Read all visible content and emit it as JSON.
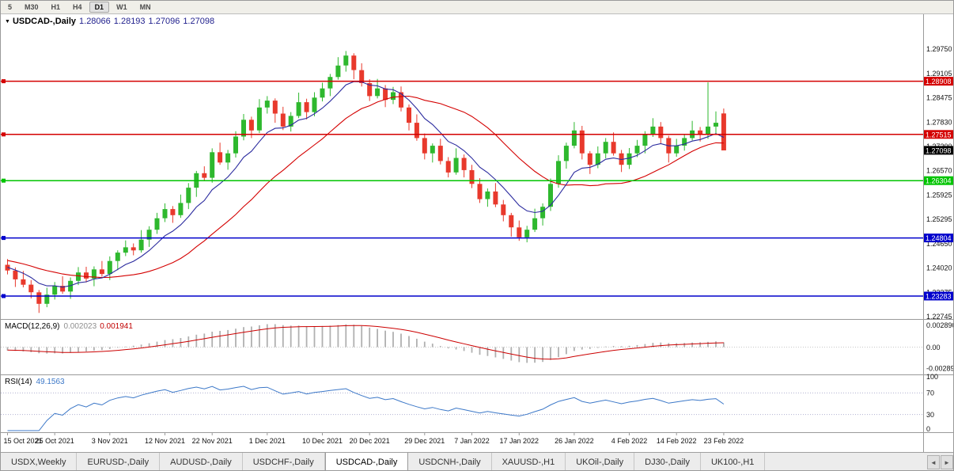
{
  "toolbar": {
    "periods": [
      "5",
      "M30",
      "H1",
      "H4",
      "D1",
      "W1",
      "MN"
    ],
    "active": "D1"
  },
  "chart": {
    "title": {
      "symbol": "USDCAD-,Daily",
      "open": "1.28066",
      "high": "1.28193",
      "low": "1.27096",
      "close": "1.27098"
    },
    "price_axis": {
      "labels": [
        "1.29750",
        "1.29105",
        "1.28475",
        "1.27830",
        "1.27200",
        "1.26570",
        "1.25925",
        "1.25295",
        "1.24650",
        "1.24020",
        "1.23375",
        "1.22745"
      ],
      "top_price": 1.3058,
      "bottom_price": 1.2266
    },
    "levels": [
      {
        "price": 1.28908,
        "label": "1.28908",
        "color": "#d40000"
      },
      {
        "price": 1.27515,
        "label": "1.27515",
        "color": "#d40000"
      },
      {
        "price": 1.26304,
        "label": "1.26304",
        "color": "#00c400"
      },
      {
        "price": 1.24804,
        "label": "1.24804",
        "color": "#0000cc"
      },
      {
        "price": 1.23283,
        "label": "1.23283",
        "color": "#0000cc"
      }
    ],
    "current_price": {
      "price": 1.27098,
      "label": "1.27098",
      "color": "#000000"
    },
    "colors": {
      "bull": "#2eb82e",
      "bear": "#e8392c",
      "axis_line": "#9a9a9a",
      "grid_dot": "#c8c8c8"
    }
  },
  "chart_data": {
    "type": "candlestick",
    "symbol": "USDCAD",
    "timeframe": "Daily",
    "x_labels": [
      {
        "i": 0,
        "t": "15 Oct 2021"
      },
      {
        "i": 6,
        "t": "25 Oct 2021"
      },
      {
        "i": 13,
        "t": "3 Nov 2021"
      },
      {
        "i": 20,
        "t": "12 Nov 2021"
      },
      {
        "i": 26,
        "t": "22 Nov 2021"
      },
      {
        "i": 33,
        "t": "1 Dec 2021"
      },
      {
        "i": 40,
        "t": "10 Dec 2021"
      },
      {
        "i": 46,
        "t": "20 Dec 2021"
      },
      {
        "i": 53,
        "t": "29 Dec 2021"
      },
      {
        "i": 59,
        "t": "7 Jan 2022"
      },
      {
        "i": 65,
        "t": "17 Jan 2022"
      },
      {
        "i": 72,
        "t": "26 Jan 2022"
      },
      {
        "i": 79,
        "t": "4 Feb 2022"
      },
      {
        "i": 85,
        "t": "14 Feb 2022"
      },
      {
        "i": 91,
        "t": "23 Feb 2022"
      }
    ],
    "candles": [
      [
        1.241,
        1.2425,
        1.2385,
        1.2395
      ],
      [
        1.2395,
        1.2403,
        1.2352,
        1.2372
      ],
      [
        1.2372,
        1.2394,
        1.2351,
        1.2358
      ],
      [
        1.2358,
        1.237,
        1.2322,
        1.2338
      ],
      [
        1.2338,
        1.2344,
        1.2284,
        1.2308
      ],
      [
        1.2308,
        1.235,
        1.2299,
        1.2332
      ],
      [
        1.2332,
        1.2365,
        1.2319,
        1.2355
      ],
      [
        1.2355,
        1.238,
        1.2334,
        1.234
      ],
      [
        1.234,
        1.2377,
        1.2321,
        1.2368
      ],
      [
        1.2368,
        1.2404,
        1.2357,
        1.239
      ],
      [
        1.239,
        1.2405,
        1.2364,
        1.2374
      ],
      [
        1.2374,
        1.2406,
        1.2354,
        1.2398
      ],
      [
        1.2398,
        1.242,
        1.2379,
        1.2386
      ],
      [
        1.2386,
        1.2432,
        1.237,
        1.242
      ],
      [
        1.242,
        1.2448,
        1.2396,
        1.2442
      ],
      [
        1.2442,
        1.2474,
        1.2433,
        1.2456
      ],
      [
        1.2456,
        1.2466,
        1.2435,
        1.2448
      ],
      [
        1.2448,
        1.2501,
        1.2442,
        1.2476
      ],
      [
        1.2476,
        1.2511,
        1.2457,
        1.2502
      ],
      [
        1.2502,
        1.2546,
        1.2491,
        1.2532
      ],
      [
        1.2532,
        1.2571,
        1.2522,
        1.2556
      ],
      [
        1.2556,
        1.2564,
        1.252,
        1.254
      ],
      [
        1.254,
        1.2594,
        1.2533,
        1.2572
      ],
      [
        1.2572,
        1.2624,
        1.2556,
        1.2612
      ],
      [
        1.2612,
        1.2656,
        1.2588,
        1.265
      ],
      [
        1.265,
        1.2668,
        1.2629,
        1.2638
      ],
      [
        1.2638,
        1.2715,
        1.2625,
        1.2705
      ],
      [
        1.2705,
        1.273,
        1.2672,
        1.2678
      ],
      [
        1.2678,
        1.2711,
        1.2659,
        1.2702
      ],
      [
        1.2702,
        1.276,
        1.2691,
        1.2746
      ],
      [
        1.2746,
        1.2805,
        1.2736,
        1.279
      ],
      [
        1.279,
        1.2798,
        1.2742,
        1.2762
      ],
      [
        1.2762,
        1.2844,
        1.2755,
        1.2822
      ],
      [
        1.2822,
        1.2852,
        1.2806,
        1.284
      ],
      [
        1.284,
        1.2846,
        1.2782,
        1.2806
      ],
      [
        1.2806,
        1.2824,
        1.2763,
        1.2772
      ],
      [
        1.2772,
        1.281,
        1.2759,
        1.28
      ],
      [
        1.28,
        1.2861,
        1.2794,
        1.2836
      ],
      [
        1.2836,
        1.2845,
        1.2791,
        1.281
      ],
      [
        1.281,
        1.2862,
        1.2799,
        1.2848
      ],
      [
        1.2848,
        1.2887,
        1.2838,
        1.2872
      ],
      [
        1.2872,
        1.291,
        1.2852,
        1.2902
      ],
      [
        1.2902,
        1.2954,
        1.2895,
        1.2932
      ],
      [
        1.2932,
        1.297,
        1.2916,
        1.2958
      ],
      [
        1.2958,
        1.2964,
        1.2896,
        1.292
      ],
      [
        1.292,
        1.2938,
        1.2877,
        1.2886
      ],
      [
        1.2886,
        1.2896,
        1.2839,
        1.2852
      ],
      [
        1.2852,
        1.2897,
        1.2846,
        1.2872
      ],
      [
        1.2872,
        1.2881,
        1.2823,
        1.2842
      ],
      [
        1.2842,
        1.2876,
        1.2831,
        1.2862
      ],
      [
        1.2862,
        1.2877,
        1.2812,
        1.2822
      ],
      [
        1.2822,
        1.283,
        1.2762,
        1.2782
      ],
      [
        1.2782,
        1.2804,
        1.2735,
        1.2742
      ],
      [
        1.2742,
        1.2754,
        1.2686,
        1.2702
      ],
      [
        1.2702,
        1.2728,
        1.2678,
        1.2722
      ],
      [
        1.2722,
        1.274,
        1.2673,
        1.2682
      ],
      [
        1.2682,
        1.2692,
        1.2639,
        1.2652
      ],
      [
        1.2652,
        1.2715,
        1.2646,
        1.269
      ],
      [
        1.269,
        1.2699,
        1.2639,
        1.2658
      ],
      [
        1.2658,
        1.2672,
        1.2611,
        1.2622
      ],
      [
        1.2622,
        1.2637,
        1.2572,
        1.2582
      ],
      [
        1.2582,
        1.261,
        1.2562,
        1.2602
      ],
      [
        1.2602,
        1.2624,
        1.2561,
        1.2568
      ],
      [
        1.2568,
        1.258,
        1.2524,
        1.254
      ],
      [
        1.254,
        1.2546,
        1.2484,
        1.2508
      ],
      [
        1.2508,
        1.2526,
        1.2473,
        1.2482
      ],
      [
        1.2482,
        1.2512,
        1.2469,
        1.2502
      ],
      [
        1.2502,
        1.2557,
        1.2496,
        1.2532
      ],
      [
        1.2532,
        1.2571,
        1.2513,
        1.2562
      ],
      [
        1.2562,
        1.2636,
        1.2551,
        1.2622
      ],
      [
        1.2622,
        1.2697,
        1.2612,
        1.2682
      ],
      [
        1.2682,
        1.273,
        1.2662,
        1.2722
      ],
      [
        1.2722,
        1.2784,
        1.2715,
        1.2762
      ],
      [
        1.2762,
        1.2774,
        1.2686,
        1.2702
      ],
      [
        1.2702,
        1.2708,
        1.2648,
        1.2672
      ],
      [
        1.2672,
        1.272,
        1.2663,
        1.2702
      ],
      [
        1.2702,
        1.2742,
        1.2689,
        1.2732
      ],
      [
        1.2732,
        1.2757,
        1.2696,
        1.2702
      ],
      [
        1.2702,
        1.2711,
        1.2653,
        1.2672
      ],
      [
        1.2672,
        1.2716,
        1.2661,
        1.2702
      ],
      [
        1.2702,
        1.2737,
        1.2692,
        1.2722
      ],
      [
        1.2722,
        1.276,
        1.2702,
        1.2752
      ],
      [
        1.2752,
        1.2794,
        1.2745,
        1.2772
      ],
      [
        1.2772,
        1.2784,
        1.2726,
        1.2742
      ],
      [
        1.2742,
        1.2748,
        1.2678,
        1.2702
      ],
      [
        1.2702,
        1.274,
        1.2693,
        1.2722
      ],
      [
        1.2722,
        1.2752,
        1.2709,
        1.2742
      ],
      [
        1.2742,
        1.2787,
        1.2736,
        1.2762
      ],
      [
        1.2762,
        1.2771,
        1.2733,
        1.2752
      ],
      [
        1.2752,
        1.2888,
        1.274,
        1.2772
      ],
      [
        1.2772,
        1.2812,
        1.2752,
        1.2782
      ],
      [
        1.28066,
        1.28193,
        1.27096,
        1.27098
      ]
    ],
    "prehistory_closes": [
      1.246,
      1.2456,
      1.2452,
      1.2448,
      1.2444,
      1.244,
      1.2436,
      1.2432,
      1.2428,
      1.2424,
      1.242,
      1.2416,
      1.2412,
      1.2409,
      1.2406,
      1.2404,
      1.2402,
      1.2401,
      1.24,
      1.24
    ],
    "overlays": [
      {
        "name": "ma-fast",
        "type": "ema",
        "period": 8,
        "color": "#2a2a9e"
      },
      {
        "name": "ma-slow",
        "type": "sma",
        "period": 20,
        "color": "#d40000"
      }
    ],
    "indicators": [
      {
        "name_label": "MACD(12,26,9)",
        "main_value": "0.002023",
        "signal_value": "0.001941",
        "axis_labels": [
          "0.002890",
          "0.00",
          "-0.002890"
        ],
        "histogram_color": "#b0b0b0",
        "signal_color": "#cc0000"
      },
      {
        "name_label": "RSI(14)",
        "value": "49.1563",
        "axis_labels": [
          "100",
          "70",
          "30",
          "0"
        ],
        "levels": [
          70,
          30
        ],
        "line_color": "#3c78c8"
      }
    ]
  },
  "tabs": {
    "items": [
      "USDX,Weekly",
      "EURUSD-,Daily",
      "AUDUSD-,Daily",
      "USDCHF-,Daily",
      "USDCAD-,Daily",
      "USDCNH-,Daily",
      "XAUUSD-,H1",
      "UKOil-,Daily",
      "DJ30-,Daily",
      "UK100-,H1"
    ],
    "active": "USDCAD-,Daily",
    "scroll_left": "◄",
    "scroll_right": "►"
  }
}
